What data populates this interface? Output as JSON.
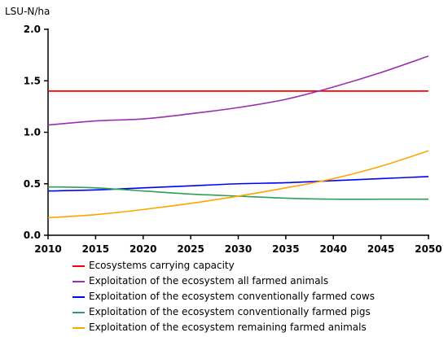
{
  "chart_data": {
    "type": "line",
    "title": "",
    "ylabel": "LSU-N/ha",
    "xlabel": "",
    "xlim": [
      2010,
      2050
    ],
    "ylim": [
      0,
      2.0
    ],
    "x_ticks": [
      2010,
      2015,
      2020,
      2025,
      2030,
      2035,
      2040,
      2045,
      2050
    ],
    "y_ticks": [
      "0.0",
      "0.5",
      "1.0",
      "1.5",
      "2.0"
    ],
    "grid": false,
    "legend_position": "bottom",
    "x": [
      2010,
      2015,
      2020,
      2025,
      2030,
      2035,
      2040,
      2045,
      2050
    ],
    "series": [
      {
        "name": "Ecosystems carrying capacity",
        "color": "#ff0000",
        "values": [
          1.4,
          1.4,
          1.4,
          1.4,
          1.4,
          1.4,
          1.4,
          1.4,
          1.4
        ]
      },
      {
        "name": "Exploitation of the ecosystem all farmed animals",
        "color": "#9b2fae",
        "values": [
          1.07,
          1.11,
          1.13,
          1.18,
          1.24,
          1.32,
          1.44,
          1.58,
          1.74
        ]
      },
      {
        "name": "Exploitation of the ecosystem conventionally farmed cows",
        "color": "#0000ff",
        "values": [
          0.43,
          0.44,
          0.46,
          0.48,
          0.5,
          0.51,
          0.53,
          0.55,
          0.57
        ]
      },
      {
        "name": "Exploitation of the ecosystem conventionally farmed pigs",
        "color": "#2e9e5b",
        "values": [
          0.47,
          0.46,
          0.43,
          0.4,
          0.38,
          0.36,
          0.35,
          0.35,
          0.35
        ]
      },
      {
        "name": "Exploitation of the ecosystem remaining farmed animals",
        "color": "#ffa500",
        "values": [
          0.17,
          0.2,
          0.25,
          0.31,
          0.38,
          0.46,
          0.55,
          0.67,
          0.82
        ]
      }
    ]
  }
}
